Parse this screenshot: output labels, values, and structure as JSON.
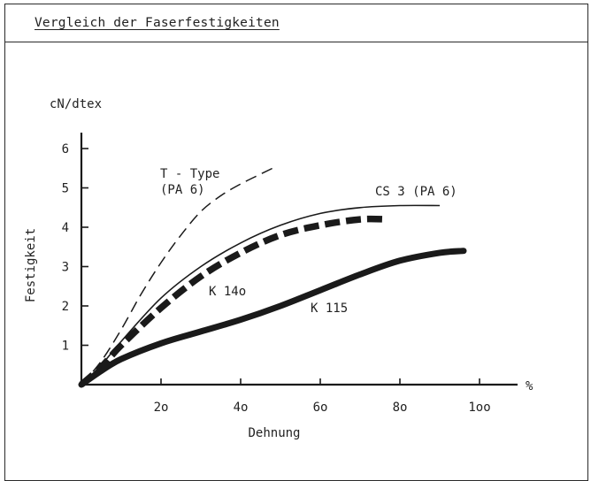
{
  "title": "Vergleich der Faserfestigkeiten",
  "chart_data": {
    "type": "line",
    "title": "Vergleich der Faserfestigkeiten",
    "xlabel": "Dehnung",
    "ylabel": "Festigkeit",
    "x_unit": "%",
    "y_unit": "cN/dtex",
    "xlim": [
      0,
      110
    ],
    "ylim": [
      0,
      6.8
    ],
    "x_ticks": [
      {
        "value": 20,
        "label": "2o"
      },
      {
        "value": 40,
        "label": "4o"
      },
      {
        "value": 60,
        "label": "6o"
      },
      {
        "value": 80,
        "label": "8o"
      },
      {
        "value": 100,
        "label": "1oo"
      }
    ],
    "y_ticks": [
      {
        "value": 1,
        "label": "1"
      },
      {
        "value": 2,
        "label": "2"
      },
      {
        "value": 3,
        "label": "3"
      },
      {
        "value": 4,
        "label": "4"
      },
      {
        "value": 5,
        "label": "5"
      },
      {
        "value": 6,
        "label": "6"
      }
    ],
    "grid": false,
    "legend": "none",
    "series": [
      {
        "name": "T - Type (PA 6)",
        "label_lines": [
          "T - Type",
          "(PA 6)"
        ],
        "style": "dashed-thin",
        "points": [
          [
            0,
            0
          ],
          [
            5,
            0.6
          ],
          [
            10,
            1.4
          ],
          [
            15,
            2.3
          ],
          [
            20,
            3.1
          ],
          [
            25,
            3.8
          ],
          [
            30,
            4.4
          ],
          [
            35,
            4.8
          ],
          [
            40,
            5.1
          ],
          [
            45,
            5.35
          ],
          [
            48,
            5.5
          ]
        ]
      },
      {
        "name": "CS 3 (PA 6)",
        "label_lines": [
          "CS 3 (PA 6)"
        ],
        "style": "solid-thin",
        "points": [
          [
            0,
            0
          ],
          [
            5,
            0.5
          ],
          [
            10,
            1.1
          ],
          [
            20,
            2.2
          ],
          [
            30,
            3.0
          ],
          [
            40,
            3.6
          ],
          [
            50,
            4.05
          ],
          [
            60,
            4.35
          ],
          [
            70,
            4.5
          ],
          [
            80,
            4.55
          ],
          [
            90,
            4.55
          ]
        ]
      },
      {
        "name": "K 14o",
        "label_lines": [
          "K 14o"
        ],
        "style": "dashed-thick",
        "points": [
          [
            0,
            0
          ],
          [
            5,
            0.45
          ],
          [
            10,
            1.0
          ],
          [
            20,
            1.95
          ],
          [
            30,
            2.75
          ],
          [
            40,
            3.35
          ],
          [
            50,
            3.8
          ],
          [
            60,
            4.05
          ],
          [
            70,
            4.2
          ],
          [
            77,
            4.2
          ]
        ]
      },
      {
        "name": "K 115",
        "label_lines": [
          "K 115"
        ],
        "style": "solid-thick",
        "points": [
          [
            0,
            0
          ],
          [
            5,
            0.35
          ],
          [
            10,
            0.65
          ],
          [
            20,
            1.05
          ],
          [
            30,
            1.35
          ],
          [
            40,
            1.65
          ],
          [
            50,
            2.0
          ],
          [
            60,
            2.4
          ],
          [
            70,
            2.8
          ],
          [
            80,
            3.15
          ],
          [
            90,
            3.35
          ],
          [
            96,
            3.4
          ]
        ]
      }
    ]
  }
}
